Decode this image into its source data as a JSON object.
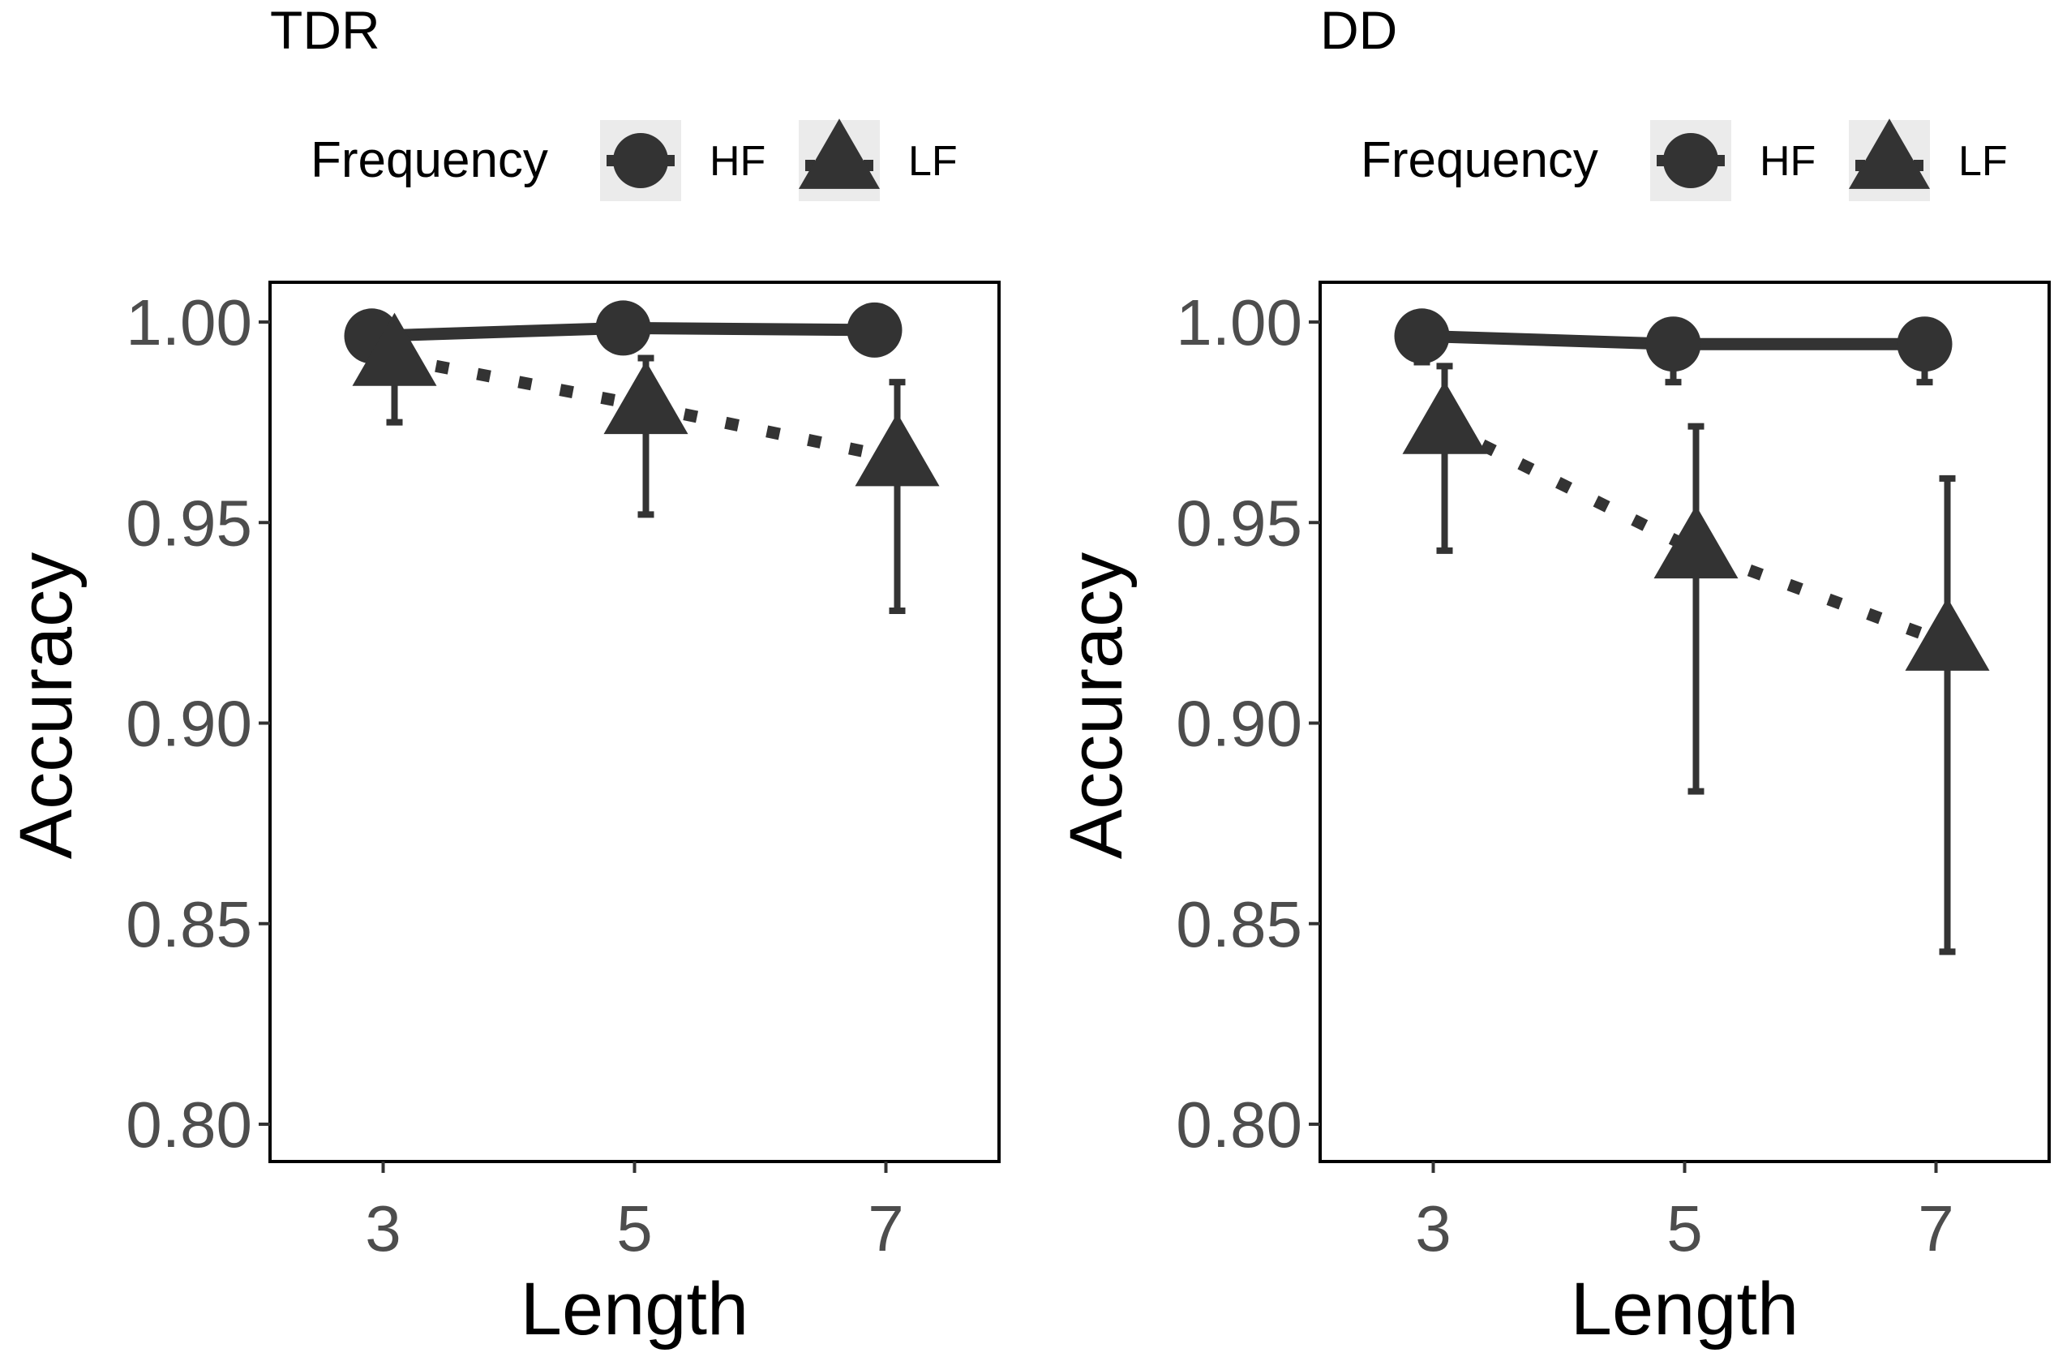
{
  "chart_data": [
    {
      "type": "line",
      "title": "TDR",
      "xlabel": "Length",
      "ylabel": "Accuracy",
      "x": [
        3,
        5,
        7
      ],
      "xlim": [
        2.1,
        7.9
      ],
      "ylim": [
        0.78,
        1.01
      ],
      "y_ticks": [
        "0.80",
        "0.85",
        "0.90",
        "0.95",
        "1.00"
      ],
      "x_ticks": [
        "3",
        "5",
        "7"
      ],
      "legend": {
        "title": "Frequency",
        "position": "top"
      },
      "grid": false,
      "series": [
        {
          "name": "HF",
          "shape": "circle",
          "linestyle": "solid",
          "values": [
            0.9965,
            0.9985,
            0.998
          ],
          "err_low": [
            null,
            null,
            null
          ],
          "err_high": [
            null,
            null,
            null
          ]
        },
        {
          "name": "LF",
          "shape": "triangle",
          "linestyle": "dotted",
          "values": [
            0.991,
            0.979,
            0.966
          ],
          "err_low": [
            0.975,
            0.952,
            0.928
          ],
          "err_high": [
            0.998,
            0.991,
            0.985
          ]
        }
      ]
    },
    {
      "type": "line",
      "title": "DD",
      "xlabel": "Length",
      "ylabel": "Accuracy",
      "x": [
        3,
        5,
        7
      ],
      "xlim": [
        2.1,
        7.9
      ],
      "ylim": [
        0.78,
        1.01
      ],
      "y_ticks": [
        "0.80",
        "0.85",
        "0.90",
        "0.95",
        "1.00"
      ],
      "x_ticks": [
        "3",
        "5",
        "7"
      ],
      "legend": {
        "title": "Frequency",
        "position": "top"
      },
      "grid": false,
      "series": [
        {
          "name": "HF",
          "shape": "circle",
          "linestyle": "solid",
          "values": [
            0.9965,
            0.9945,
            0.9945
          ],
          "err_low": [
            0.99,
            0.985,
            0.985
          ],
          "err_high": [
            null,
            null,
            null
          ]
        },
        {
          "name": "LF",
          "shape": "triangle",
          "linestyle": "dotted",
          "values": [
            0.974,
            0.943,
            0.92
          ],
          "err_low": [
            0.943,
            0.883,
            0.843
          ],
          "err_high": [
            0.989,
            0.974,
            0.961
          ]
        }
      ]
    }
  ]
}
